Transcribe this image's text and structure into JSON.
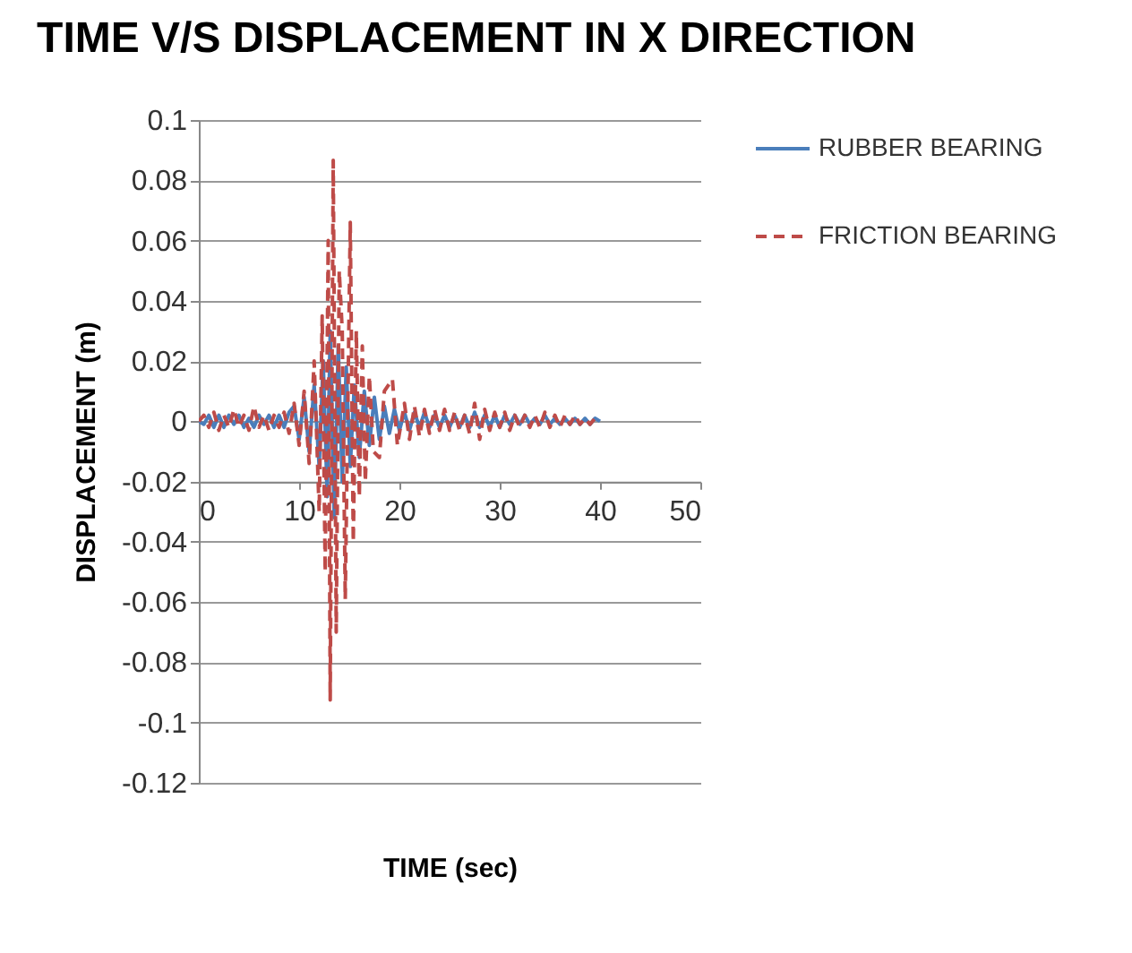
{
  "chart_data": {
    "type": "line",
    "title": "TIME V/S DISPLACEMENT IN X DIRECTION",
    "xlabel": "TIME (sec)",
    "ylabel": "DISPLACEMENT (m)",
    "xlim": [
      0,
      50
    ],
    "xticks": [
      0,
      10,
      20,
      30,
      40,
      50
    ],
    "ylim": [
      -0.12,
      0.1
    ],
    "yticks": [
      -0.12,
      -0.1,
      -0.08,
      -0.06,
      -0.04,
      -0.02,
      0,
      0.02,
      0.04,
      0.06,
      0.08,
      0.1
    ],
    "grid": "y",
    "legend": "right",
    "marker": "none",
    "series": [
      {
        "name": "RUBBER BEARING",
        "color": "#4a7ebb",
        "line_style": "solid",
        "x": [
          0,
          0.5,
          1,
          1.5,
          2,
          2.5,
          3,
          3.5,
          4,
          4.5,
          5,
          5.5,
          6,
          6.5,
          7,
          7.5,
          8,
          8.5,
          9,
          9.5,
          10,
          10.5,
          11,
          11.5,
          12,
          12.4,
          12.8,
          13.1,
          13.5,
          13.9,
          14.3,
          14.7,
          15.1,
          15.5,
          16,
          16.5,
          17,
          17.5,
          18,
          18.5,
          19,
          19.5,
          20,
          20.5,
          21,
          21.5,
          22,
          22.5,
          23,
          23.5,
          24,
          24.5,
          25,
          25.5,
          26,
          26.5,
          27,
          27.5,
          28,
          28.5,
          29,
          29.5,
          30,
          30.5,
          31,
          31.5,
          32,
          32.5,
          33,
          33.5,
          34,
          34.5,
          35,
          35.5,
          36,
          36.5,
          37,
          37.5,
          38,
          38.5,
          39,
          39.5,
          40
        ],
        "values": [
          0,
          -0.001,
          0.002,
          -0.002,
          0.002,
          -0.002,
          0.002,
          -0.001,
          0.002,
          -0.002,
          0.001,
          -0.002,
          0.002,
          -0.001,
          0.002,
          -0.002,
          0.002,
          -0.002,
          0.003,
          0.005,
          -0.006,
          0.008,
          -0.01,
          0.012,
          -0.015,
          0.02,
          -0.025,
          0.03,
          -0.032,
          0.025,
          -0.02,
          0.018,
          -0.015,
          0.012,
          -0.012,
          0.01,
          -0.008,
          0.008,
          -0.006,
          0.005,
          -0.004,
          0.004,
          -0.003,
          0.003,
          -0.003,
          0.003,
          -0.002,
          0.003,
          -0.002,
          0.002,
          -0.002,
          0.002,
          -0.002,
          0.002,
          -0.002,
          0.002,
          -0.002,
          0.003,
          -0.002,
          0.002,
          -0.002,
          0.002,
          -0.002,
          0.002,
          -0.001,
          0.002,
          -0.001,
          0.002,
          -0.001,
          0.001,
          -0.001,
          0.002,
          -0.001,
          0.001,
          -0.001,
          0.001,
          -0.001,
          0.001,
          -0.001,
          0.001,
          -0.001,
          0.001,
          0
        ]
      },
      {
        "name": "FRICTION BEARING",
        "color": "#be4b48",
        "line_style": "dashed",
        "x": [
          0,
          0.5,
          1,
          1.5,
          2,
          2.5,
          3,
          3.5,
          4,
          4.5,
          5,
          5.5,
          6,
          6.5,
          7,
          7.5,
          8,
          8.5,
          9,
          9.5,
          10,
          10.5,
          11,
          11.5,
          12,
          12.3,
          12.6,
          12.9,
          13.1,
          13.4,
          13.7,
          14,
          14.3,
          14.6,
          15.1,
          15.4,
          15.7,
          16,
          16.3,
          16.6,
          17,
          17.4,
          18,
          18.5,
          19.3,
          19.8,
          20.5,
          21,
          21.5,
          22,
          22.5,
          23,
          23.5,
          24,
          24.5,
          25,
          25.5,
          26,
          26.5,
          27,
          27.5,
          28,
          28.5,
          29,
          29.5,
          30,
          30.5,
          31,
          31.5,
          32,
          32.5,
          33,
          33.5,
          34,
          34.5,
          35,
          35.5,
          36,
          36.5,
          37,
          37.5,
          38,
          38.5,
          39,
          39.5,
          40
        ],
        "values": [
          0,
          0.002,
          -0.002,
          0.003,
          -0.003,
          0.002,
          -0.002,
          0.004,
          -0.002,
          0.002,
          -0.003,
          0.005,
          -0.002,
          0.002,
          -0.003,
          0.002,
          -0.002,
          0.003,
          -0.004,
          0.006,
          -0.008,
          0.01,
          -0.014,
          0.02,
          -0.03,
          0.035,
          -0.05,
          0.06,
          -0.0925,
          0.0866,
          -0.07,
          0.05,
          0.03,
          -0.059,
          0.066,
          -0.04,
          0.03,
          -0.025,
          0.025,
          -0.02,
          0.015,
          -0.01,
          -0.012,
          0.01,
          0.014,
          -0.008,
          0.006,
          -0.006,
          0.005,
          -0.005,
          0.004,
          -0.004,
          0.004,
          -0.003,
          0.004,
          -0.003,
          0.003,
          -0.003,
          0.002,
          -0.004,
          0.006,
          -0.006,
          0.004,
          -0.003,
          0.003,
          -0.002,
          0.003,
          -0.003,
          0.002,
          -0.002,
          0.002,
          -0.002,
          0.002,
          -0.002,
          0.003,
          -0.002,
          0.002,
          -0.002,
          0.002,
          -0.001,
          0.002,
          -0.001,
          0.001,
          -0.001,
          0.001,
          0
        ]
      }
    ]
  }
}
